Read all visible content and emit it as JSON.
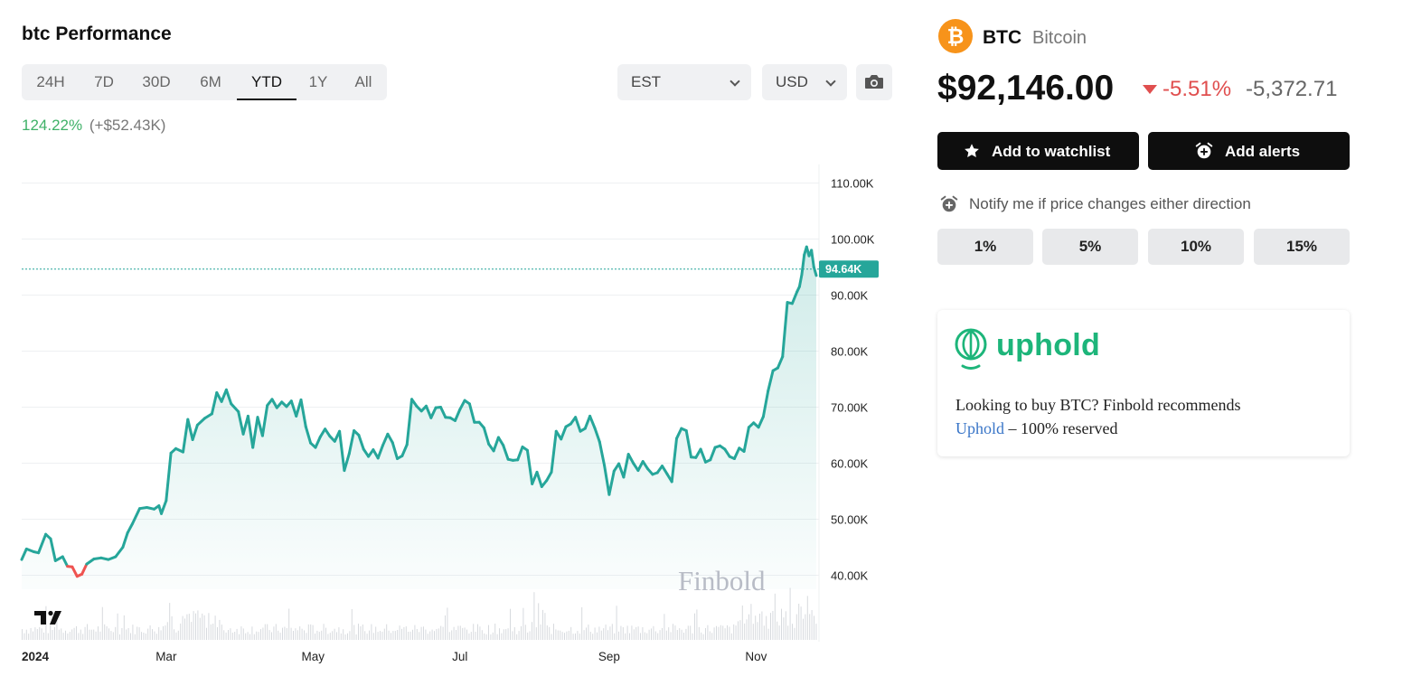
{
  "header": {
    "title": "btc Performance"
  },
  "range_tabs": [
    {
      "label": "24H",
      "active": false
    },
    {
      "label": "7D",
      "active": false
    },
    {
      "label": "30D",
      "active": false
    },
    {
      "label": "6M",
      "active": false
    },
    {
      "label": "YTD",
      "active": true
    },
    {
      "label": "1Y",
      "active": false
    },
    {
      "label": "All",
      "active": false
    }
  ],
  "controls": {
    "timezone": "EST",
    "currency": "USD",
    "snapshot_icon": "camera-icon"
  },
  "performance": {
    "percent": "124.22%",
    "absolute": "(+$52.43K)"
  },
  "coin": {
    "logo_icon": "bitcoin-logo",
    "symbol": "BTC",
    "name": "Bitcoin",
    "price": "$92,146.00",
    "change_pct": "-5.51%",
    "change_abs": "-5,372.71",
    "change_color": "#e04f4f"
  },
  "actions": {
    "watchlist": {
      "label": "Add to watchlist",
      "icon": "star-icon"
    },
    "alerts": {
      "label": "Add alerts",
      "icon": "alarm-clock-icon"
    }
  },
  "notify": {
    "icon": "alarm-clock-icon",
    "text": "Notify me if price changes either direction"
  },
  "percent_buttons": [
    "1%",
    "5%",
    "10%",
    "15%"
  ],
  "promo": {
    "brand": "uphold",
    "brand_color": "#1db57a",
    "text_before": "Looking to buy BTC? Finbold recommends",
    "link_text": "Uphold",
    "text_after": " – 100% reserved"
  },
  "chart_data": {
    "type": "area",
    "y_ticks": [
      "110.00K",
      "100.00K",
      "90.00K",
      "80.00K",
      "70.00K",
      "60.00K",
      "50.00K",
      "40.00K"
    ],
    "x_ticks": [
      {
        "label": "2024",
        "date": "2024-01-01",
        "bold": true
      },
      {
        "label": "Mar",
        "date": "2024-03-01",
        "bold": false
      },
      {
        "label": "May",
        "date": "2024-05-01",
        "bold": false
      },
      {
        "label": "Jul",
        "date": "2024-07-01",
        "bold": false
      },
      {
        "label": "Sep",
        "date": "2024-09-01",
        "bold": false
      },
      {
        "label": "Nov",
        "date": "2024-11-01",
        "bold": false
      }
    ],
    "ylim": [
      37500,
      112500
    ],
    "xlim": [
      "2024-01-01",
      "2024-11-26"
    ],
    "current_price_label": "94.64K",
    "current_price": 94640,
    "watermark": "Finbold",
    "logo_text": "TV",
    "line_color": "#26a69a",
    "down_color": "#ef5350",
    "series": [
      {
        "date": "2024-01-01",
        "value": 42800
      },
      {
        "date": "2024-01-03",
        "value": 44700
      },
      {
        "date": "2024-01-06",
        "value": 44200
      },
      {
        "date": "2024-01-08",
        "value": 44000
      },
      {
        "date": "2024-01-11",
        "value": 47300
      },
      {
        "date": "2024-01-13",
        "value": 46500
      },
      {
        "date": "2024-01-15",
        "value": 42600
      },
      {
        "date": "2024-01-18",
        "value": 43300
      },
      {
        "date": "2024-01-20",
        "value": 41600
      },
      {
        "date": "2024-01-22",
        "value": 41500
      },
      {
        "date": "2024-01-24",
        "value": 39800
      },
      {
        "date": "2024-01-26",
        "value": 40200
      },
      {
        "date": "2024-01-28",
        "value": 42000
      },
      {
        "date": "2024-01-31",
        "value": 42900
      },
      {
        "date": "2024-02-03",
        "value": 43100
      },
      {
        "date": "2024-02-06",
        "value": 42800
      },
      {
        "date": "2024-02-09",
        "value": 43300
      },
      {
        "date": "2024-02-12",
        "value": 45000
      },
      {
        "date": "2024-02-14",
        "value": 47600
      },
      {
        "date": "2024-02-16",
        "value": 49200
      },
      {
        "date": "2024-02-19",
        "value": 51900
      },
      {
        "date": "2024-02-22",
        "value": 52100
      },
      {
        "date": "2024-02-25",
        "value": 51800
      },
      {
        "date": "2024-02-27",
        "value": 52400
      },
      {
        "date": "2024-02-28",
        "value": 51000
      },
      {
        "date": "2024-03-01",
        "value": 53300
      },
      {
        "date": "2024-03-03",
        "value": 61800
      },
      {
        "date": "2024-03-05",
        "value": 62600
      },
      {
        "date": "2024-03-08",
        "value": 62000
      },
      {
        "date": "2024-03-10",
        "value": 67800
      },
      {
        "date": "2024-03-12",
        "value": 64200
      },
      {
        "date": "2024-03-14",
        "value": 66800
      },
      {
        "date": "2024-03-17",
        "value": 68000
      },
      {
        "date": "2024-03-20",
        "value": 68800
      },
      {
        "date": "2024-03-22",
        "value": 72600
      },
      {
        "date": "2024-03-24",
        "value": 71000
      },
      {
        "date": "2024-03-26",
        "value": 73100
      },
      {
        "date": "2024-03-28",
        "value": 70600
      },
      {
        "date": "2024-03-31",
        "value": 69200
      },
      {
        "date": "2024-04-02",
        "value": 65200
      },
      {
        "date": "2024-04-04",
        "value": 68400
      },
      {
        "date": "2024-04-06",
        "value": 62800
      },
      {
        "date": "2024-04-08",
        "value": 68200
      },
      {
        "date": "2024-04-10",
        "value": 64900
      },
      {
        "date": "2024-04-12",
        "value": 70300
      },
      {
        "date": "2024-04-14",
        "value": 71400
      },
      {
        "date": "2024-04-16",
        "value": 69900
      },
      {
        "date": "2024-04-18",
        "value": 70900
      },
      {
        "date": "2024-04-20",
        "value": 70100
      },
      {
        "date": "2024-04-22",
        "value": 71100
      },
      {
        "date": "2024-04-24",
        "value": 68400
      },
      {
        "date": "2024-04-26",
        "value": 71300
      },
      {
        "date": "2024-04-28",
        "value": 66500
      },
      {
        "date": "2024-04-30",
        "value": 63600
      },
      {
        "date": "2024-05-02",
        "value": 62800
      },
      {
        "date": "2024-05-04",
        "value": 64700
      },
      {
        "date": "2024-05-06",
        "value": 66100
      },
      {
        "date": "2024-05-08",
        "value": 64800
      },
      {
        "date": "2024-05-10",
        "value": 63900
      },
      {
        "date": "2024-05-12",
        "value": 65700
      },
      {
        "date": "2024-05-14",
        "value": 58700
      },
      {
        "date": "2024-05-16",
        "value": 61700
      },
      {
        "date": "2024-05-18",
        "value": 65800
      },
      {
        "date": "2024-05-20",
        "value": 65000
      },
      {
        "date": "2024-05-22",
        "value": 62500
      },
      {
        "date": "2024-05-24",
        "value": 61200
      },
      {
        "date": "2024-05-26",
        "value": 62400
      },
      {
        "date": "2024-05-28",
        "value": 60900
      },
      {
        "date": "2024-05-30",
        "value": 63200
      },
      {
        "date": "2024-06-01",
        "value": 65200
      },
      {
        "date": "2024-06-03",
        "value": 63700
      },
      {
        "date": "2024-06-05",
        "value": 60800
      },
      {
        "date": "2024-06-07",
        "value": 61300
      },
      {
        "date": "2024-06-09",
        "value": 63300
      },
      {
        "date": "2024-06-11",
        "value": 71400
      },
      {
        "date": "2024-06-13",
        "value": 70200
      },
      {
        "date": "2024-06-15",
        "value": 69300
      },
      {
        "date": "2024-06-17",
        "value": 70200
      },
      {
        "date": "2024-06-19",
        "value": 68100
      },
      {
        "date": "2024-06-21",
        "value": 69900
      },
      {
        "date": "2024-06-23",
        "value": 70000
      },
      {
        "date": "2024-06-25",
        "value": 68200
      },
      {
        "date": "2024-06-27",
        "value": 68100
      },
      {
        "date": "2024-06-29",
        "value": 67600
      },
      {
        "date": "2024-07-01",
        "value": 69600
      },
      {
        "date": "2024-07-03",
        "value": 71200
      },
      {
        "date": "2024-07-05",
        "value": 70600
      },
      {
        "date": "2024-07-07",
        "value": 67300
      },
      {
        "date": "2024-07-09",
        "value": 67300
      },
      {
        "date": "2024-07-11",
        "value": 66300
      },
      {
        "date": "2024-07-13",
        "value": 63400
      },
      {
        "date": "2024-07-15",
        "value": 62200
      },
      {
        "date": "2024-07-17",
        "value": 64600
      },
      {
        "date": "2024-07-19",
        "value": 63200
      },
      {
        "date": "2024-07-21",
        "value": 60700
      },
      {
        "date": "2024-07-23",
        "value": 60500
      },
      {
        "date": "2024-07-25",
        "value": 60600
      },
      {
        "date": "2024-07-27",
        "value": 62900
      },
      {
        "date": "2024-07-29",
        "value": 62300
      },
      {
        "date": "2024-07-31",
        "value": 56300
      },
      {
        "date": "2024-08-02",
        "value": 58400
      },
      {
        "date": "2024-08-04",
        "value": 55800
      },
      {
        "date": "2024-08-06",
        "value": 56900
      },
      {
        "date": "2024-08-08",
        "value": 58400
      },
      {
        "date": "2024-08-10",
        "value": 65700
      },
      {
        "date": "2024-08-12",
        "value": 64300
      },
      {
        "date": "2024-08-14",
        "value": 66500
      },
      {
        "date": "2024-08-16",
        "value": 67000
      },
      {
        "date": "2024-08-18",
        "value": 68200
      },
      {
        "date": "2024-08-20",
        "value": 65700
      },
      {
        "date": "2024-08-22",
        "value": 66200
      },
      {
        "date": "2024-08-24",
        "value": 68400
      },
      {
        "date": "2024-08-26",
        "value": 66300
      },
      {
        "date": "2024-08-28",
        "value": 63800
      },
      {
        "date": "2024-08-30",
        "value": 59600
      },
      {
        "date": "2024-09-01",
        "value": 54400
      },
      {
        "date": "2024-09-03",
        "value": 58600
      },
      {
        "date": "2024-09-05",
        "value": 59900
      },
      {
        "date": "2024-09-07",
        "value": 57500
      },
      {
        "date": "2024-09-09",
        "value": 61600
      },
      {
        "date": "2024-09-11",
        "value": 60000
      },
      {
        "date": "2024-09-13",
        "value": 58700
      },
      {
        "date": "2024-09-15",
        "value": 60300
      },
      {
        "date": "2024-09-17",
        "value": 59000
      },
      {
        "date": "2024-09-19",
        "value": 58000
      },
      {
        "date": "2024-09-21",
        "value": 58300
      },
      {
        "date": "2024-09-23",
        "value": 59500
      },
      {
        "date": "2024-09-25",
        "value": 58100
      },
      {
        "date": "2024-09-27",
        "value": 56700
      },
      {
        "date": "2024-09-29",
        "value": 64400
      },
      {
        "date": "2024-10-01",
        "value": 66200
      },
      {
        "date": "2024-10-03",
        "value": 65800
      },
      {
        "date": "2024-10-05",
        "value": 61100
      },
      {
        "date": "2024-10-07",
        "value": 61000
      },
      {
        "date": "2024-10-09",
        "value": 62500
      },
      {
        "date": "2024-10-11",
        "value": 60200
      },
      {
        "date": "2024-10-13",
        "value": 60600
      },
      {
        "date": "2024-10-15",
        "value": 62800
      },
      {
        "date": "2024-10-17",
        "value": 63100
      },
      {
        "date": "2024-10-19",
        "value": 62500
      },
      {
        "date": "2024-10-21",
        "value": 61200
      },
      {
        "date": "2024-10-23",
        "value": 60800
      },
      {
        "date": "2024-10-25",
        "value": 62700
      },
      {
        "date": "2024-10-27",
        "value": 62100
      },
      {
        "date": "2024-10-29",
        "value": 66400
      },
      {
        "date": "2024-10-31",
        "value": 67200
      },
      {
        "date": "2024-11-02",
        "value": 66400
      },
      {
        "date": "2024-11-04",
        "value": 68300
      },
      {
        "date": "2024-11-06",
        "value": 72900
      },
      {
        "date": "2024-11-08",
        "value": 76500
      },
      {
        "date": "2024-11-10",
        "value": 77000
      },
      {
        "date": "2024-11-12",
        "value": 79000
      },
      {
        "date": "2024-11-14",
        "value": 88700
      },
      {
        "date": "2024-11-16",
        "value": 88500
      },
      {
        "date": "2024-11-18",
        "value": 90600
      },
      {
        "date": "2024-11-19",
        "value": 91500
      },
      {
        "date": "2024-11-20",
        "value": 93700
      },
      {
        "date": "2024-11-21",
        "value": 97200
      },
      {
        "date": "2024-11-22",
        "value": 98600
      },
      {
        "date": "2024-11-23",
        "value": 97000
      },
      {
        "date": "2024-11-24",
        "value": 98000
      },
      {
        "date": "2024-11-25",
        "value": 95000
      },
      {
        "date": "2024-11-26",
        "value": 93500
      }
    ]
  }
}
